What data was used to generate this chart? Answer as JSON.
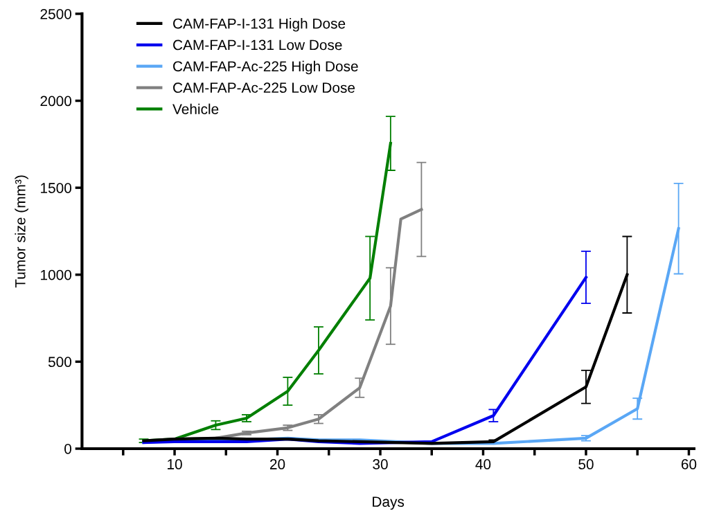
{
  "chart_data": {
    "type": "line",
    "xlabel": "Days",
    "ylabel": "Tumor size (mm³)",
    "xlim": [
      1,
      60.5
    ],
    "ylim": [
      0,
      2500
    ],
    "xticks": [
      {
        "value": 5,
        "label": null
      },
      10,
      {
        "value": 15,
        "label": null
      },
      20,
      {
        "value": 25,
        "label": null
      },
      30,
      {
        "value": 35,
        "label": null
      },
      40,
      {
        "value": 45,
        "label": null
      },
      50,
      {
        "value": 55,
        "label": null
      },
      60
    ],
    "yticks": [
      0,
      500,
      1000,
      1500,
      2000,
      2500
    ],
    "grid": false,
    "legend": "top left",
    "marker": "none",
    "line_style": "solid",
    "series": [
      {
        "name": "CAM-FAP-I-131 High Dose",
        "color": "#000000",
        "x": [
          7,
          10,
          14,
          17,
          21,
          24,
          28,
          35,
          41,
          50,
          54
        ],
        "values": [
          45,
          55,
          60,
          55,
          55,
          45,
          40,
          30,
          40,
          355,
          1000
        ],
        "errors": [
          null,
          null,
          null,
          null,
          null,
          null,
          null,
          null,
          10,
          95,
          220
        ]
      },
      {
        "name": "CAM-FAP-I-131 Low Dose",
        "color": "#0000ee",
        "x": [
          7,
          10,
          14,
          17,
          21,
          24,
          28,
          35,
          41,
          50
        ],
        "values": [
          35,
          40,
          40,
          40,
          55,
          40,
          30,
          40,
          190,
          985
        ],
        "errors": [
          null,
          null,
          null,
          null,
          null,
          null,
          null,
          null,
          35,
          150
        ]
      },
      {
        "name": "CAM-FAP-Ac-225 High Dose",
        "color": "#5aa7f5",
        "x": [
          7,
          10,
          14,
          17,
          21,
          24,
          28,
          35,
          41,
          50,
          55,
          59
        ],
        "values": [
          35,
          45,
          50,
          50,
          60,
          50,
          50,
          30,
          30,
          60,
          230,
          1265
        ],
        "errors": [
          null,
          null,
          null,
          null,
          null,
          null,
          null,
          null,
          null,
          15,
          60,
          260
        ]
      },
      {
        "name": "CAM-FAP-Ac-225 Low Dose",
        "color": "#808080",
        "x": [
          7,
          10,
          14,
          17,
          21,
          24,
          28,
          31,
          32,
          34
        ],
        "values": [
          40,
          55,
          60,
          90,
          120,
          170,
          350,
          820,
          1320,
          1375
        ],
        "errors": [
          null,
          null,
          null,
          10,
          15,
          25,
          55,
          220,
          null,
          270
        ]
      },
      {
        "name": "Vehicle",
        "color": "#007f00",
        "x": [
          7,
          10,
          14,
          17,
          21,
          24,
          29,
          31
        ],
        "values": [
          45,
          55,
          135,
          175,
          330,
          565,
          980,
          1755
        ],
        "errors": [
          10,
          null,
          25,
          20,
          80,
          135,
          240,
          155
        ]
      }
    ]
  }
}
